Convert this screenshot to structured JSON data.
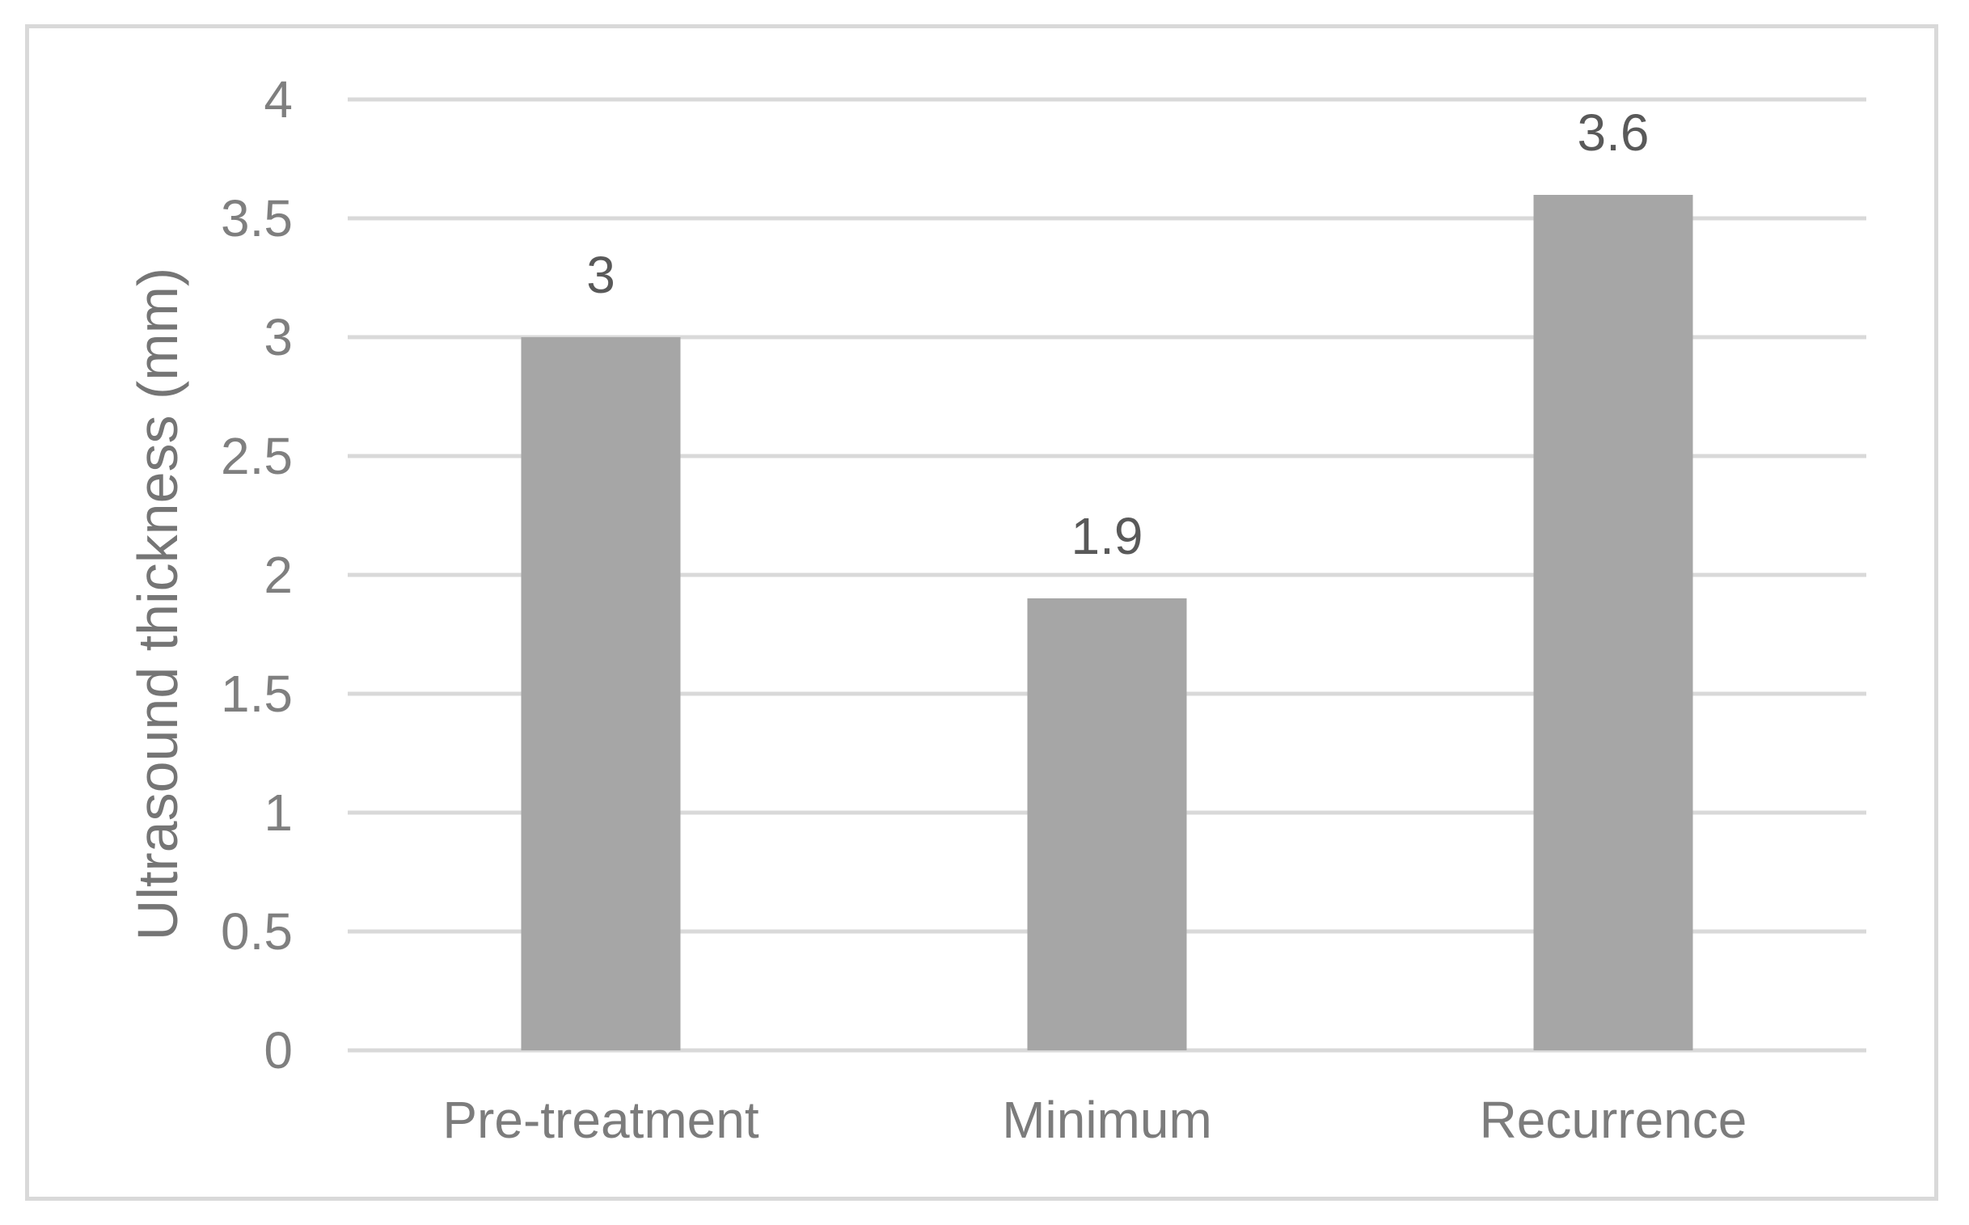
{
  "chart_data": {
    "type": "bar",
    "title": "",
    "categories": [
      "Pre-treatment",
      "Minimum",
      "Recurrence"
    ],
    "values": [
      3,
      1.9,
      3.6
    ],
    "data_labels": [
      "3",
      "1.9",
      "3.6"
    ],
    "xlabel": "",
    "ylabel": "Ultrasound thickness (mm)",
    "ylim": [
      0,
      4
    ],
    "ytick_step": 0.5,
    "yticks": [
      {
        "value": 0,
        "label": "0"
      },
      {
        "value": 0.5,
        "label": "0.5"
      },
      {
        "value": 1,
        "label": "1"
      },
      {
        "value": 1.5,
        "label": "1.5"
      },
      {
        "value": 2,
        "label": "2"
      },
      {
        "value": 2.5,
        "label": "2.5"
      },
      {
        "value": 3,
        "label": "3"
      },
      {
        "value": 3.5,
        "label": "3.5"
      },
      {
        "value": 4,
        "label": "4"
      }
    ],
    "grid": "horizontal",
    "legend": "none"
  },
  "colors": {
    "background": "#ffffff",
    "frame_border": "#d9d9d9",
    "gridline": "#d9d9d9",
    "bar_fill": "#a6a6a6",
    "axis_tick_text": "#7f7f7f",
    "axis_title_text": "#757575",
    "category_text": "#7c7c7c",
    "data_label_text": "#595959"
  }
}
